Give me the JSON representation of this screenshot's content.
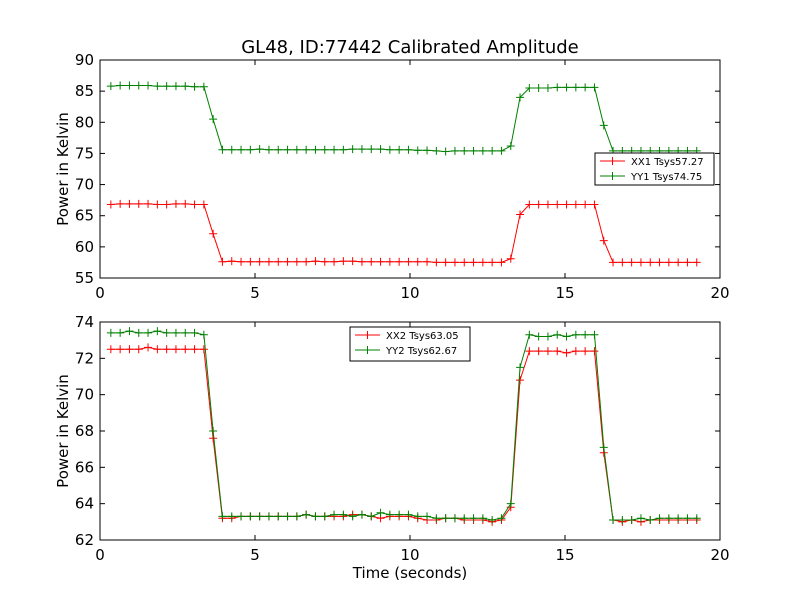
{
  "figure": {
    "title": "GL48, ID:77442 Calibrated Amplitude",
    "xlabel": "Time (seconds)"
  },
  "chart_data": [
    {
      "type": "line",
      "title": "GL48, ID:77442 Calibrated Amplitude",
      "xlabel": "",
      "ylabel": "Power in Kelvin",
      "xlim": [
        0,
        20
      ],
      "ylim": [
        55,
        90
      ],
      "xticks": [
        0,
        5,
        10,
        15,
        20
      ],
      "yticks": [
        55,
        60,
        65,
        70,
        75,
        80,
        85,
        90
      ],
      "grid": false,
      "legend_position": "center-right",
      "x": [
        0.35,
        0.65,
        0.95,
        1.25,
        1.55,
        1.85,
        2.15,
        2.45,
        2.75,
        3.05,
        3.35,
        3.65,
        3.95,
        4.25,
        4.55,
        4.85,
        5.15,
        5.45,
        5.75,
        6.05,
        6.35,
        6.65,
        6.95,
        7.25,
        7.55,
        7.85,
        8.15,
        8.45,
        8.75,
        9.05,
        9.35,
        9.65,
        9.95,
        10.25,
        10.55,
        10.85,
        11.15,
        11.45,
        11.75,
        12.05,
        12.35,
        12.65,
        12.95,
        13.25,
        13.55,
        13.85,
        14.15,
        14.45,
        14.75,
        15.05,
        15.35,
        15.65,
        15.95,
        16.25,
        16.55,
        16.85,
        17.15,
        17.45,
        17.75,
        18.05,
        18.35,
        18.65,
        18.95,
        19.25
      ],
      "series": [
        {
          "name": "XX1 Tsys57.27",
          "color": "#ff0000",
          "values": [
            66.8,
            66.9,
            66.9,
            66.9,
            66.9,
            66.8,
            66.8,
            66.9,
            66.9,
            66.8,
            66.8,
            62.1,
            57.6,
            57.7,
            57.6,
            57.6,
            57.6,
            57.6,
            57.6,
            57.6,
            57.6,
            57.6,
            57.7,
            57.6,
            57.6,
            57.7,
            57.7,
            57.6,
            57.6,
            57.6,
            57.6,
            57.6,
            57.6,
            57.6,
            57.6,
            57.5,
            57.5,
            57.5,
            57.5,
            57.5,
            57.5,
            57.5,
            57.5,
            58.1,
            65.2,
            66.8,
            66.8,
            66.8,
            66.8,
            66.8,
            66.8,
            66.8,
            66.8,
            61.0,
            57.5,
            57.5,
            57.5,
            57.5,
            57.5,
            57.5,
            57.5,
            57.5,
            57.5,
            57.5
          ]
        },
        {
          "name": "YY1 Tsys74.75",
          "color": "#008000",
          "values": [
            85.8,
            85.9,
            85.9,
            85.9,
            85.9,
            85.8,
            85.8,
            85.8,
            85.8,
            85.7,
            85.7,
            80.5,
            75.6,
            75.6,
            75.6,
            75.6,
            75.7,
            75.6,
            75.6,
            75.6,
            75.6,
            75.6,
            75.6,
            75.6,
            75.6,
            75.6,
            75.7,
            75.7,
            75.7,
            75.7,
            75.6,
            75.6,
            75.6,
            75.5,
            75.5,
            75.4,
            75.3,
            75.4,
            75.4,
            75.4,
            75.4,
            75.4,
            75.4,
            76.2,
            84.0,
            85.5,
            85.5,
            85.5,
            85.6,
            85.6,
            85.6,
            85.6,
            85.6,
            79.5,
            75.4,
            75.4,
            75.4,
            75.4,
            75.4,
            75.4,
            75.4,
            75.4,
            75.4,
            75.4
          ]
        }
      ]
    },
    {
      "type": "line",
      "title": "",
      "xlabel": "Time (seconds)",
      "ylabel": "Power in Kelvin",
      "xlim": [
        0,
        20
      ],
      "ylim": [
        62,
        74
      ],
      "xticks": [
        0,
        5,
        10,
        15,
        20
      ],
      "yticks": [
        62,
        64,
        66,
        68,
        70,
        72,
        74
      ],
      "grid": false,
      "legend_position": "upper-center",
      "x": [
        0.35,
        0.65,
        0.95,
        1.25,
        1.55,
        1.85,
        2.15,
        2.45,
        2.75,
        3.05,
        3.35,
        3.65,
        3.95,
        4.25,
        4.55,
        4.85,
        5.15,
        5.45,
        5.75,
        6.05,
        6.35,
        6.65,
        6.95,
        7.25,
        7.55,
        7.85,
        8.15,
        8.45,
        8.75,
        9.05,
        9.35,
        9.65,
        9.95,
        10.25,
        10.55,
        10.85,
        11.15,
        11.45,
        11.75,
        12.05,
        12.35,
        12.65,
        12.95,
        13.25,
        13.55,
        13.85,
        14.15,
        14.45,
        14.75,
        15.05,
        15.35,
        15.65,
        15.95,
        16.25,
        16.55,
        16.85,
        17.15,
        17.45,
        17.75,
        18.05,
        18.35,
        18.65,
        18.95,
        19.25
      ],
      "series": [
        {
          "name": "XX2 Tsys63.05",
          "color": "#ff0000",
          "values": [
            72.5,
            72.5,
            72.5,
            72.5,
            72.6,
            72.5,
            72.5,
            72.5,
            72.5,
            72.5,
            72.5,
            67.6,
            63.2,
            63.2,
            63.3,
            63.3,
            63.3,
            63.3,
            63.3,
            63.3,
            63.3,
            63.4,
            63.3,
            63.3,
            63.3,
            63.3,
            63.4,
            63.4,
            63.3,
            63.2,
            63.3,
            63.3,
            63.3,
            63.2,
            63.1,
            63.1,
            63.2,
            63.2,
            63.1,
            63.1,
            63.1,
            63.0,
            63.1,
            63.8,
            70.8,
            72.4,
            72.4,
            72.4,
            72.4,
            72.3,
            72.4,
            72.4,
            72.4,
            66.8,
            63.1,
            63.0,
            63.1,
            63.0,
            63.1,
            63.1,
            63.1,
            63.1,
            63.1,
            63.1
          ]
        },
        {
          "name": "YY2 Tsys62.67",
          "color": "#008000",
          "values": [
            73.4,
            73.4,
            73.5,
            73.4,
            73.4,
            73.5,
            73.4,
            73.4,
            73.4,
            73.4,
            73.3,
            68.0,
            63.3,
            63.3,
            63.3,
            63.3,
            63.3,
            63.3,
            63.3,
            63.3,
            63.3,
            63.4,
            63.3,
            63.3,
            63.4,
            63.4,
            63.3,
            63.4,
            63.3,
            63.5,
            63.4,
            63.4,
            63.4,
            63.3,
            63.3,
            63.2,
            63.2,
            63.2,
            63.2,
            63.2,
            63.2,
            63.1,
            63.2,
            64.0,
            71.5,
            73.3,
            73.2,
            73.2,
            73.3,
            73.2,
            73.3,
            73.3,
            73.3,
            67.1,
            63.1,
            63.1,
            63.1,
            63.2,
            63.1,
            63.2,
            63.2,
            63.2,
            63.2,
            63.2
          ]
        }
      ]
    }
  ]
}
